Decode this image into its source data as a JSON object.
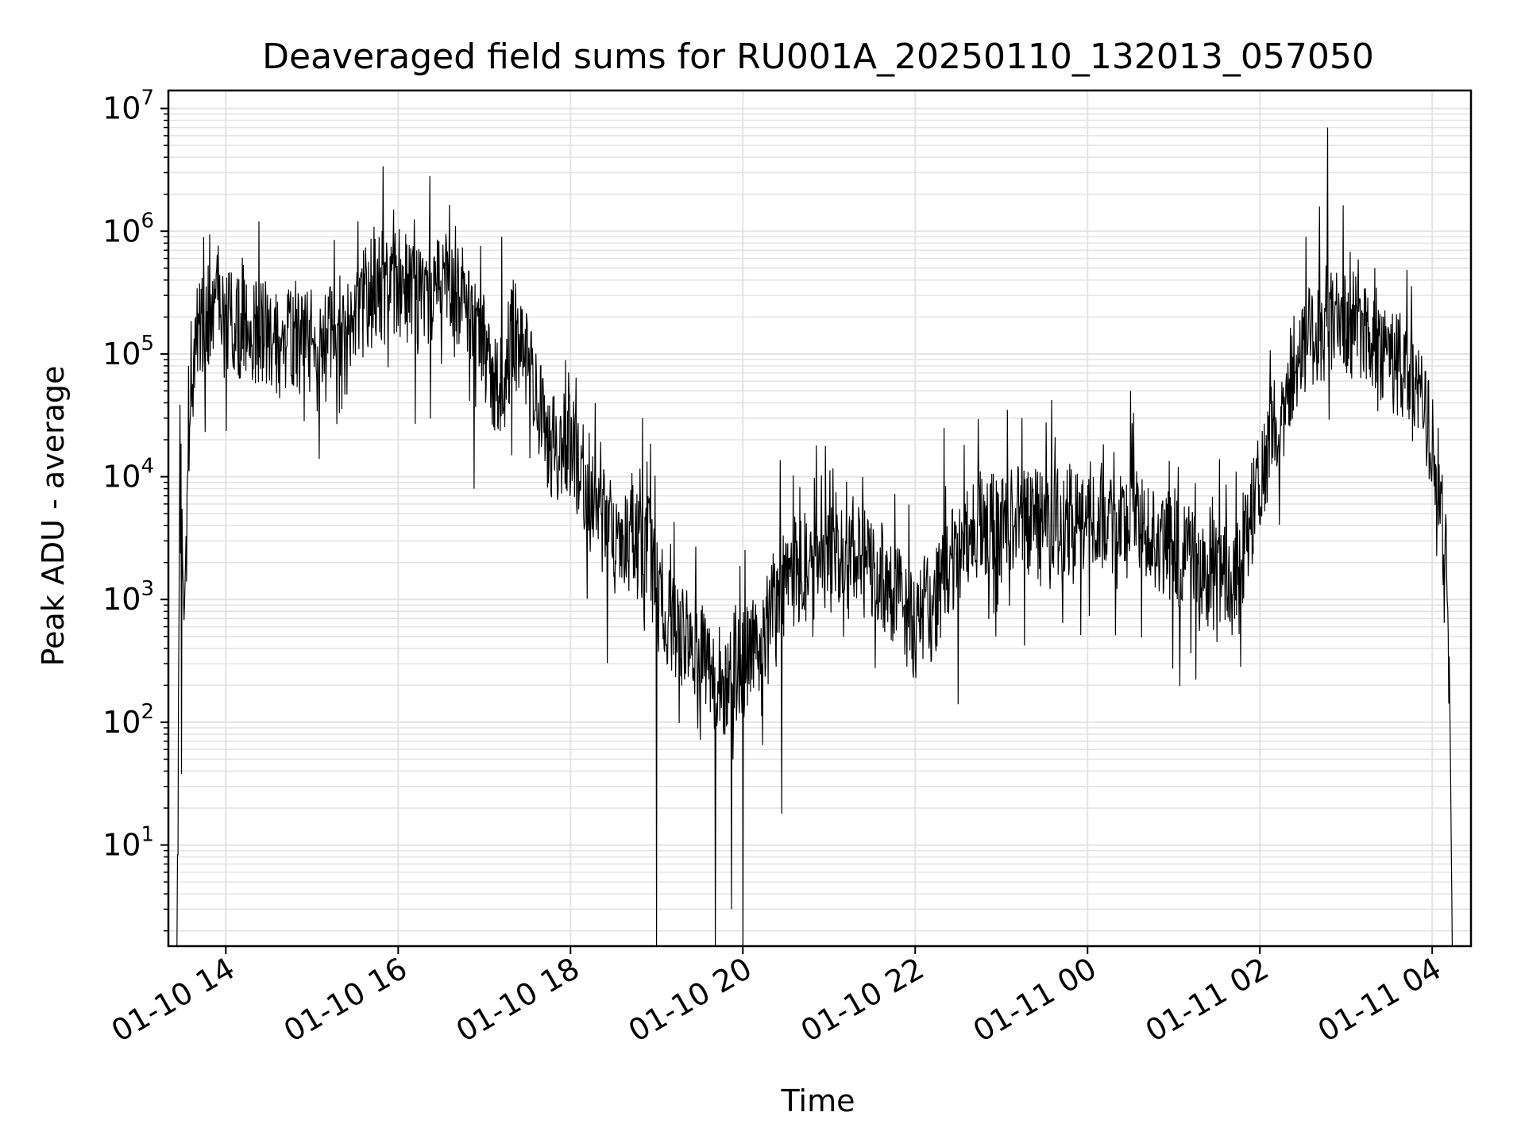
{
  "chart_data": {
    "type": "line",
    "title": "Deaveraged field sums for RU001A_20250110_132013_057050",
    "xlabel": "Time",
    "ylabel": "Peak ADU - average",
    "yscale": "log",
    "ylim": [
      1.5,
      14000000
    ],
    "xlim": [
      "01-10 13:20",
      "01-11 04:27"
    ],
    "grid": true,
    "line_color": "#000000",
    "x_ticks": [
      "01-10 14",
      "01-10 16",
      "01-10 18",
      "01-10 20",
      "01-10 22",
      "01-11 00",
      "01-11 02",
      "01-11 04"
    ],
    "y_ticks": [
      {
        "base": "10",
        "exp": "1"
      },
      {
        "base": "10",
        "exp": "2"
      },
      {
        "base": "10",
        "exp": "3"
      },
      {
        "base": "10",
        "exp": "4"
      },
      {
        "base": "10",
        "exp": "5"
      },
      {
        "base": "10",
        "exp": "6"
      },
      {
        "base": "10",
        "exp": "7"
      }
    ],
    "series": [
      {
        "x": [
          "01-10 13:26",
          "01-10 13:28",
          "01-10 13:31",
          "01-10 13:33",
          "01-10 13:36",
          "01-10 13:40",
          "01-10 13:45",
          "01-10 13:50",
          "01-10 14:00",
          "01-10 14:15",
          "01-10 14:30",
          "01-10 14:45",
          "01-10 15:00",
          "01-10 15:15",
          "01-10 15:30",
          "01-10 15:45",
          "01-10 16:00",
          "01-10 16:15",
          "01-10 16:30",
          "01-10 16:45",
          "01-10 17:00",
          "01-10 17:10",
          "01-10 17:20",
          "01-10 17:30",
          "01-10 17:40",
          "01-10 17:50",
          "01-10 18:00",
          "01-10 18:15",
          "01-10 18:30",
          "01-10 18:45",
          "01-10 18:55",
          "01-10 19:00",
          "01-10 19:10",
          "01-10 19:20",
          "01-10 19:30",
          "01-10 19:40",
          "01-10 19:50",
          "01-10 20:00",
          "01-10 20:10",
          "01-10 20:20",
          "01-10 20:30",
          "01-10 20:45",
          "01-10 21:00",
          "01-10 21:15",
          "01-10 21:30",
          "01-10 21:45",
          "01-10 22:00",
          "01-10 22:15",
          "01-10 22:30",
          "01-10 22:45",
          "01-10 23:00",
          "01-10 23:15",
          "01-10 23:30",
          "01-10 23:45",
          "01-11 00:00",
          "01-11 00:15",
          "01-11 00:30",
          "01-11 00:45",
          "01-11 01:00",
          "01-11 01:15",
          "01-11 01:30",
          "01-11 01:45",
          "01-11 02:00",
          "01-11 02:15",
          "01-11 02:30",
          "01-11 02:45",
          "01-11 03:00",
          "01-11 03:15",
          "01-11 03:30",
          "01-11 03:45",
          "01-11 04:00",
          "01-11 04:05",
          "01-11 04:10",
          "01-11 04:12",
          "01-11 04:14"
        ],
        "y": [
          1.5,
          15000,
          600,
          8000,
          50000,
          150000,
          180000,
          200000,
          170000,
          150000,
          160000,
          130000,
          120000,
          150000,
          220000,
          350000,
          400000,
          250000,
          450000,
          300000,
          120000,
          40000,
          150000,
          80000,
          30000,
          15000,
          20000,
          6000,
          3000,
          4000,
          2500,
          1200,
          600,
          500,
          350,
          250,
          200,
          300,
          400,
          800,
          1500,
          2000,
          2500,
          2200,
          1800,
          1200,
          600,
          1000,
          2500,
          3500,
          4000,
          5000,
          4500,
          4000,
          5000,
          4500,
          4000,
          3500,
          2500,
          2000,
          1500,
          1500,
          10000,
          40000,
          120000,
          200000,
          180000,
          150000,
          100000,
          60000,
          20000,
          8000,
          1500,
          300,
          1.5
        ],
        "peaks_x": [
          "01-10 13:34",
          "01-10 15:57",
          "01-10 16:40",
          "01-10 17:12",
          "01-10 18:50",
          "01-10 20:00",
          "01-10 22:20",
          "01-11 00:30",
          "01-11 02:32",
          "01-11 02:47",
          "01-11 03:20"
        ],
        "peaks_y": [
          80000,
          1500000,
          1100000,
          900000,
          30000,
          1000,
          25000,
          50000,
          900000,
          7000000,
          500000
        ],
        "troughs_x": [
          "01-10 13:26",
          "01-10 13:29",
          "01-10 15:05",
          "01-10 16:12",
          "01-10 16:53",
          "01-10 19:00",
          "01-10 19:41",
          "01-10 19:52",
          "01-10 20:00",
          "01-10 20:27",
          "01-10 22:30",
          "01-11 01:30",
          "01-11 04:15"
        ],
        "troughs_y": [
          1.5,
          38,
          14000,
          27000,
          8000,
          1.5,
          1.5,
          3,
          1.5,
          18,
          140,
          450,
          1.5
        ]
      }
    ]
  }
}
